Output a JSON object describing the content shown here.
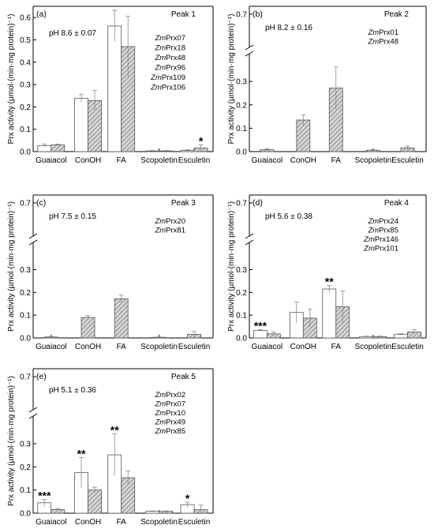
{
  "chart_data": [
    {
      "type": "bar",
      "panel_label": "(a)",
      "peak": "Peak 1",
      "ph": "pH 8.6 ± 0.07",
      "genes": [
        "ZmPrx07",
        "ZmPrx18",
        "ZmPrx48",
        "ZmPrx96",
        "ZmPrx109",
        "ZmPrx106"
      ],
      "categories": [
        "Guaiacol",
        "ConOH",
        "FA",
        "Scopoletin",
        "Esculetin"
      ],
      "ylabel": "Prx activity (µmol·(min·mg protein)⁻¹)",
      "ylim": [
        0,
        0.65
      ],
      "yticks": [
        "0.0",
        "0.1",
        "0.2",
        "0.3",
        "0.4",
        "0.5",
        "0.6"
      ],
      "axis_break": false,
      "series": [
        {
          "fill": "white",
          "values": [
            0.027,
            0.238,
            0.562,
            0.003,
            0.005
          ],
          "errors": [
            0.007,
            0.017,
            0.07,
            0.002,
            0.004
          ]
        },
        {
          "fill": "hatched",
          "values": [
            0.03,
            0.228,
            0.47,
            0.003,
            0.016
          ],
          "errors": [
            0.003,
            0.045,
            0.135,
            0.002,
            0.014
          ]
        }
      ],
      "significance": [
        {
          "category": "Esculetin",
          "label": "*"
        }
      ]
    },
    {
      "type": "bar",
      "panel_label": "(b)",
      "peak": "Peak 2",
      "ph": "pH 8.2 ± 0.16",
      "genes": [
        "ZmPrx01",
        "ZmPrx48"
      ],
      "categories": [
        "Guaiacol",
        "ConOH",
        "FA",
        "Scopoletin",
        "Esculetin"
      ],
      "ylabel": "Prx activity (µmol·(min·mg protein)⁻¹)",
      "ylim": [
        0,
        0.7
      ],
      "yticks": [
        "0.0",
        "0.1",
        "0.2",
        "0.3",
        "0.7"
      ],
      "axis_break": true,
      "series": [
        {
          "fill": "hatched",
          "values": [
            0.008,
            0.135,
            0.272,
            0.006,
            0.016
          ],
          "errors": [
            0.004,
            0.022,
            0.09,
            0.002,
            0.008
          ]
        }
      ],
      "significance": []
    },
    {
      "type": "bar",
      "panel_label": "(c)",
      "peak": "Peak 3",
      "ph": "pH 7.5 ± 0.15",
      "genes": [
        "ZmPrx20",
        "ZmPrx81"
      ],
      "categories": [
        "Guaiacol",
        "ConOH",
        "FA",
        "Scopoletin",
        "Esculetin"
      ],
      "ylabel": "Prx activity (µmol·(min·mg protein)⁻¹)",
      "ylim": [
        0,
        0.7
      ],
      "yticks": [
        "0.0",
        "0.1",
        "0.2",
        "0.3",
        "0.7"
      ],
      "axis_break": true,
      "series": [
        {
          "fill": "hatched",
          "values": [
            0.004,
            0.09,
            0.172,
            0.003,
            0.016
          ],
          "errors": [
            0.002,
            0.008,
            0.016,
            0.001,
            0.012
          ]
        }
      ],
      "significance": []
    },
    {
      "type": "bar",
      "panel_label": "(d)",
      "peak": "Peak 4",
      "ph": "pH 5.6 ± 0.38",
      "genes": [
        "ZmPrx24",
        "ZmPrx85",
        "ZmPrx146",
        "ZmPrx101"
      ],
      "categories": [
        "Guaiacol",
        "ConOH",
        "FA",
        "Scopoletin",
        "Esculetin"
      ],
      "ylabel": "Prx activity (µmol·(min·mg protein)⁻¹)",
      "ylim": [
        0,
        0.7
      ],
      "yticks": [
        "0.0",
        "0.1",
        "0.2",
        "0.3",
        "0.7"
      ],
      "axis_break": true,
      "series": [
        {
          "fill": "white",
          "values": [
            0.033,
            0.112,
            0.215,
            0.006,
            0.016
          ],
          "errors": [
            0.003,
            0.045,
            0.015,
            0.002,
            0.003
          ]
        },
        {
          "fill": "hatched",
          "values": [
            0.018,
            0.087,
            0.137,
            0.006,
            0.026
          ],
          "errors": [
            0.008,
            0.04,
            0.07,
            0.002,
            0.01
          ]
        }
      ],
      "significance": [
        {
          "category": "Guaiacol",
          "label": "***"
        },
        {
          "category": "FA",
          "label": "**"
        }
      ]
    },
    {
      "type": "bar",
      "panel_label": "(e)",
      "peak": "Peak 5",
      "ph": "pH 5.1 ± 0.36",
      "genes": [
        "ZmPrx02",
        "ZmPrx07",
        "ZmPrx10",
        "ZmPrx49",
        "ZmPrx85"
      ],
      "categories": [
        "Guaiacol",
        "ConOH",
        "FA",
        "Scopoletin",
        "Esculetin"
      ],
      "ylabel": "Prx activity (µmol·(min·mg protein)⁻¹)",
      "ylim": [
        0,
        0.7
      ],
      "yticks": [
        "0.0",
        "0.1",
        "0.2",
        "0.3",
        "0.7"
      ],
      "axis_break": true,
      "series": [
        {
          "fill": "white",
          "values": [
            0.045,
            0.175,
            0.252,
            0.008,
            0.037
          ],
          "errors": [
            0.014,
            0.065,
            0.09,
            0.002,
            0.01
          ]
        },
        {
          "fill": "hatched",
          "values": [
            0.016,
            0.1,
            0.153,
            0.008,
            0.015
          ],
          "errors": [
            0.004,
            0.012,
            0.03,
            0.002,
            0.02
          ]
        }
      ],
      "significance": [
        {
          "category": "Guaiacol",
          "label": "***"
        },
        {
          "category": "ConOH",
          "label": "**"
        },
        {
          "category": "FA",
          "label": "**"
        },
        {
          "category": "Esculetin",
          "label": "*"
        }
      ]
    }
  ],
  "colors": {
    "axis": "#000000",
    "bar_white": "#ffffff",
    "bar_hatched_bg": "#d6d6d6",
    "hatch": "#7a7a7a",
    "error": "#888888"
  }
}
